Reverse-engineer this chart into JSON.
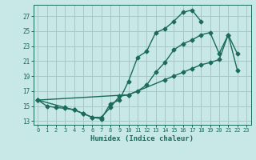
{
  "xlabel": "Humidex (Indice chaleur)",
  "bg_color": "#c8e8e8",
  "grid_color": "#a8c8c8",
  "line_color": "#1a6b5a",
  "xlim": [
    -0.5,
    23.5
  ],
  "ylim": [
    12.5,
    28.5
  ],
  "xticks": [
    0,
    1,
    2,
    3,
    4,
    5,
    6,
    7,
    8,
    9,
    10,
    11,
    12,
    13,
    14,
    15,
    16,
    17,
    18,
    19,
    20,
    21,
    22,
    23
  ],
  "yticks": [
    13,
    15,
    17,
    19,
    21,
    23,
    25,
    27
  ],
  "line1_x": [
    0,
    1,
    2,
    3,
    4,
    5,
    6,
    7,
    8,
    9,
    10,
    11,
    12,
    13,
    14,
    15,
    16,
    17,
    18
  ],
  "line1_y": [
    15.8,
    15.0,
    14.8,
    14.7,
    14.5,
    14.0,
    13.5,
    13.3,
    15.3,
    15.8,
    18.3,
    21.5,
    22.3,
    24.8,
    25.3,
    26.3,
    27.5,
    27.8,
    26.3
  ],
  "line2_x": [
    0,
    3,
    4,
    5,
    6,
    7,
    8,
    9,
    10,
    11,
    12,
    13,
    14,
    15,
    16,
    17,
    18,
    19,
    20,
    21,
    22
  ],
  "line2_y": [
    15.8,
    14.8,
    14.5,
    14.0,
    13.5,
    13.5,
    14.8,
    16.3,
    16.5,
    17.0,
    17.8,
    19.5,
    20.8,
    22.5,
    23.3,
    23.8,
    24.5,
    24.8,
    22.0,
    24.5,
    19.8
  ],
  "line3_x": [
    0,
    10,
    14,
    15,
    16,
    17,
    18,
    19,
    20,
    21,
    22
  ],
  "line3_y": [
    15.8,
    16.5,
    18.5,
    19.0,
    19.5,
    20.0,
    20.5,
    20.8,
    21.2,
    24.5,
    22.0
  ]
}
